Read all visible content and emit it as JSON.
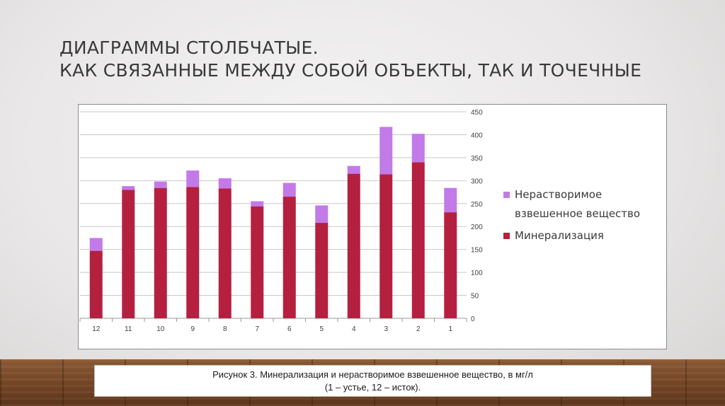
{
  "slide": {
    "title_line1": "ДИАГРАММЫ СТОЛБЧАТЫЕ.",
    "title_line2": "КАК СВЯЗАННЫЕ МЕЖДУ СОБОЙ ОБЪЕКТЫ, ТАК И ТОЧЕЧНЫЕ",
    "caption_line1": "Рисунок 3. Минерализация и нерастворимое взвешенное вещество, в мг/л",
    "caption_line2": "(1 – устье, 12 – исток)."
  },
  "colors": {
    "mineral": "#b5203f",
    "suspended": "#c27ae8",
    "grid": "#c8c8c8",
    "axis_text": "#404040"
  },
  "chart_data": {
    "type": "bar",
    "stacked": true,
    "categories": [
      "12",
      "11",
      "10",
      "9",
      "8",
      "7",
      "6",
      "5",
      "4",
      "3",
      "2",
      "1"
    ],
    "series": [
      {
        "name": "Минерализация",
        "values": [
          147,
          280,
          284,
          286,
          283,
          244,
          265,
          208,
          315,
          314,
          340,
          231
        ]
      },
      {
        "name": "Нерастворимое взвешенное вещество",
        "values": [
          28,
          8,
          14,
          36,
          22,
          11,
          30,
          38,
          17,
          103,
          62,
          53
        ]
      }
    ],
    "ylim": [
      0,
      450
    ],
    "yticks": [
      "0",
      "50",
      "100",
      "150",
      "200",
      "250",
      "300",
      "350",
      "400",
      "450"
    ],
    "y_axis_position": "right",
    "grid": true,
    "legend": {
      "position": "right",
      "items": [
        {
          "line1": "Нерастворимое",
          "line2": "взвешенное вещество",
          "series": 1
        },
        {
          "line1": "Минерализация",
          "line2": "",
          "series": 0
        }
      ]
    }
  }
}
